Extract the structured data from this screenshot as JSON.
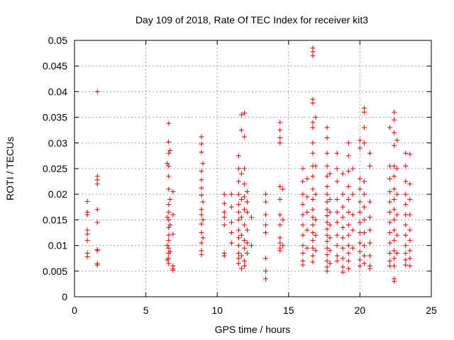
{
  "chart_data": {
    "type": "scatter",
    "title": "Day 109 of 2018, Rate Of TEC Index for receiver kit3",
    "xlabel": "GPS time / hours",
    "ylabel": "ROTI / TECUs",
    "xlim": [
      0,
      25
    ],
    "ylim": [
      0,
      0.05
    ],
    "xticks": [
      0,
      5,
      10,
      15,
      20,
      25
    ],
    "xtick_labels": [
      "0",
      "5",
      "10",
      "15",
      "20",
      "25"
    ],
    "yticks": [
      0,
      0.005,
      0.01,
      0.015,
      0.02,
      0.025,
      0.03,
      0.035,
      0.04,
      0.045,
      0.05
    ],
    "ytick_labels": [
      "0",
      "0.005",
      "0.01",
      "0.015",
      "0.02",
      "0.025",
      "0.03",
      "0.035",
      "0.04",
      "0.045",
      "0.05"
    ],
    "grid": true,
    "marker": "plus",
    "marker_color": "#e00000",
    "points": [
      [
        0.9,
        0.0186
      ],
      [
        0.9,
        0.0165
      ],
      [
        0.9,
        0.016
      ],
      [
        0.9,
        0.013
      ],
      [
        0.9,
        0.0122
      ],
      [
        0.9,
        0.011
      ],
      [
        0.9,
        0.0085
      ],
      [
        0.9,
        0.0078
      ],
      [
        1.6,
        0.04
      ],
      [
        1.6,
        0.0235
      ],
      [
        1.6,
        0.0228
      ],
      [
        1.6,
        0.022
      ],
      [
        1.6,
        0.017
      ],
      [
        1.6,
        0.0145
      ],
      [
        1.6,
        0.0092
      ],
      [
        1.6,
        0.009
      ],
      [
        1.6,
        0.0065
      ],
      [
        1.6,
        0.0062
      ],
      [
        6.6,
        0.0338
      ],
      [
        6.6,
        0.0302
      ],
      [
        6.6,
        0.028
      ],
      [
        6.6,
        0.0255
      ],
      [
        6.6,
        0.0235
      ],
      [
        6.6,
        0.021
      ],
      [
        6.6,
        0.018
      ],
      [
        6.6,
        0.0165
      ],
      [
        6.6,
        0.015
      ],
      [
        6.6,
        0.0135
      ],
      [
        6.6,
        0.012
      ],
      [
        6.6,
        0.011
      ],
      [
        6.6,
        0.0095
      ],
      [
        6.6,
        0.0085
      ],
      [
        6.6,
        0.0075
      ],
      [
        6.6,
        0.0065
      ],
      [
        6.5,
        0.026
      ],
      [
        6.5,
        0.0155
      ],
      [
        6.5,
        0.01
      ],
      [
        6.5,
        0.0072
      ],
      [
        6.7,
        0.0285
      ],
      [
        6.7,
        0.019
      ],
      [
        6.7,
        0.014
      ],
      [
        6.7,
        0.0088
      ],
      [
        6.9,
        0.0205
      ],
      [
        6.9,
        0.016
      ],
      [
        6.9,
        0.0122
      ],
      [
        6.9,
        0.006
      ],
      [
        6.9,
        0.0055
      ],
      [
        6.9,
        0.0052
      ],
      [
        8.9,
        0.0312
      ],
      [
        8.9,
        0.0298
      ],
      [
        8.9,
        0.0282
      ],
      [
        8.9,
        0.0245
      ],
      [
        8.9,
        0.0228
      ],
      [
        8.9,
        0.0212
      ],
      [
        8.9,
        0.0198
      ],
      [
        8.9,
        0.017
      ],
      [
        8.9,
        0.016
      ],
      [
        8.9,
        0.0142
      ],
      [
        8.9,
        0.0125
      ],
      [
        8.9,
        0.0105
      ],
      [
        8.9,
        0.009
      ],
      [
        8.9,
        0.0082
      ],
      [
        9.0,
        0.026
      ],
      [
        9.0,
        0.0185
      ],
      [
        9.0,
        0.015
      ],
      [
        9.0,
        0.0115
      ],
      [
        10.5,
        0.02
      ],
      [
        10.5,
        0.0182
      ],
      [
        10.5,
        0.0165
      ],
      [
        10.5,
        0.0155
      ],
      [
        10.5,
        0.014
      ],
      [
        10.5,
        0.0085
      ],
      [
        10.5,
        0.008
      ],
      [
        11.0,
        0.02
      ],
      [
        11.0,
        0.0175
      ],
      [
        11.0,
        0.0145
      ],
      [
        11.0,
        0.0125
      ],
      [
        11.0,
        0.0105
      ],
      [
        11.5,
        0.0275
      ],
      [
        11.5,
        0.025
      ],
      [
        11.5,
        0.0225
      ],
      [
        11.5,
        0.02
      ],
      [
        11.5,
        0.018
      ],
      [
        11.5,
        0.0165
      ],
      [
        11.5,
        0.015
      ],
      [
        11.5,
        0.013
      ],
      [
        11.5,
        0.0115
      ],
      [
        11.5,
        0.01
      ],
      [
        11.5,
        0.0085
      ],
      [
        11.5,
        0.0075
      ],
      [
        11.5,
        0.0065
      ],
      [
        11.7,
        0.0355
      ],
      [
        11.7,
        0.0325
      ],
      [
        11.7,
        0.024
      ],
      [
        11.7,
        0.019
      ],
      [
        11.7,
        0.0155
      ],
      [
        11.7,
        0.012
      ],
      [
        11.7,
        0.008
      ],
      [
        11.7,
        0.0055
      ],
      [
        11.9,
        0.0358
      ],
      [
        11.9,
        0.0312
      ],
      [
        11.9,
        0.025
      ],
      [
        11.9,
        0.022
      ],
      [
        11.9,
        0.0195
      ],
      [
        11.9,
        0.017
      ],
      [
        11.9,
        0.014
      ],
      [
        11.9,
        0.011
      ],
      [
        11.9,
        0.0095
      ],
      [
        11.9,
        0.007
      ],
      [
        11.9,
        0.006
      ],
      [
        12.1,
        0.0205
      ],
      [
        12.1,
        0.0185
      ],
      [
        12.1,
        0.0165
      ],
      [
        12.1,
        0.013
      ],
      [
        12.1,
        0.0105
      ],
      [
        12.1,
        0.0085
      ],
      [
        12.4,
        0.0155
      ],
      [
        12.4,
        0.01
      ],
      [
        13.4,
        0.02
      ],
      [
        13.4,
        0.0185
      ],
      [
        13.4,
        0.016
      ],
      [
        13.4,
        0.014
      ],
      [
        13.4,
        0.0125
      ],
      [
        13.4,
        0.0075
      ],
      [
        13.4,
        0.005
      ],
      [
        13.4,
        0.0035
      ],
      [
        14.4,
        0.034
      ],
      [
        14.4,
        0.0325
      ],
      [
        14.4,
        0.031
      ],
      [
        14.4,
        0.03
      ],
      [
        14.4,
        0.0215
      ],
      [
        14.4,
        0.019
      ],
      [
        14.4,
        0.016
      ],
      [
        14.4,
        0.014
      ],
      [
        14.4,
        0.0115
      ],
      [
        14.4,
        0.0105
      ],
      [
        14.4,
        0.0095
      ],
      [
        14.4,
        0.009
      ],
      [
        14.6,
        0.021
      ],
      [
        14.6,
        0.015
      ],
      [
        14.6,
        0.01
      ],
      [
        16.0,
        0.025
      ],
      [
        16.0,
        0.0225
      ],
      [
        16.0,
        0.02
      ],
      [
        16.0,
        0.018
      ],
      [
        16.0,
        0.016
      ],
      [
        16.0,
        0.014
      ],
      [
        16.0,
        0.012
      ],
      [
        16.0,
        0.01
      ],
      [
        16.0,
        0.0085
      ],
      [
        16.0,
        0.007
      ],
      [
        16.0,
        0.0062
      ],
      [
        16.3,
        0.023
      ],
      [
        16.3,
        0.0195
      ],
      [
        16.3,
        0.0165
      ],
      [
        16.3,
        0.013
      ],
      [
        16.3,
        0.0095
      ],
      [
        16.7,
        0.0485
      ],
      [
        16.7,
        0.0478
      ],
      [
        16.7,
        0.047
      ],
      [
        16.7,
        0.0385
      ],
      [
        16.7,
        0.0378
      ],
      [
        16.7,
        0.034
      ],
      [
        16.7,
        0.033
      ],
      [
        16.7,
        0.03
      ],
      [
        16.7,
        0.028
      ],
      [
        16.7,
        0.0255
      ],
      [
        16.7,
        0.0235
      ],
      [
        16.7,
        0.021
      ],
      [
        16.7,
        0.019
      ],
      [
        16.7,
        0.017
      ],
      [
        16.7,
        0.0155
      ],
      [
        16.7,
        0.014
      ],
      [
        16.7,
        0.0125
      ],
      [
        16.7,
        0.011
      ],
      [
        16.7,
        0.0095
      ],
      [
        16.7,
        0.008
      ],
      [
        16.7,
        0.0068
      ],
      [
        16.9,
        0.035
      ],
      [
        16.9,
        0.0255
      ],
      [
        16.9,
        0.02
      ],
      [
        16.9,
        0.015
      ],
      [
        16.9,
        0.012
      ],
      [
        16.9,
        0.009
      ],
      [
        17.7,
        0.033
      ],
      [
        17.7,
        0.031
      ],
      [
        17.7,
        0.028
      ],
      [
        17.7,
        0.0255
      ],
      [
        17.7,
        0.0235
      ],
      [
        17.7,
        0.0215
      ],
      [
        17.7,
        0.02
      ],
      [
        17.7,
        0.0185
      ],
      [
        17.7,
        0.017
      ],
      [
        17.7,
        0.0158
      ],
      [
        17.7,
        0.0145
      ],
      [
        17.7,
        0.0132
      ],
      [
        17.7,
        0.012
      ],
      [
        17.7,
        0.0108
      ],
      [
        17.7,
        0.0095
      ],
      [
        17.7,
        0.0082
      ],
      [
        17.7,
        0.007
      ],
      [
        17.7,
        0.0058
      ],
      [
        17.7,
        0.005
      ],
      [
        17.9,
        0.024
      ],
      [
        17.9,
        0.019
      ],
      [
        17.9,
        0.0165
      ],
      [
        17.9,
        0.014
      ],
      [
        17.9,
        0.0115
      ],
      [
        17.9,
        0.009
      ],
      [
        17.9,
        0.0065
      ],
      [
        18.4,
        0.028
      ],
      [
        18.4,
        0.025
      ],
      [
        18.4,
        0.0225
      ],
      [
        18.4,
        0.019
      ],
      [
        18.4,
        0.0165
      ],
      [
        18.4,
        0.0145
      ],
      [
        18.4,
        0.012
      ],
      [
        18.4,
        0.01
      ],
      [
        18.4,
        0.008
      ],
      [
        18.4,
        0.007
      ],
      [
        18.8,
        0.024
      ],
      [
        18.8,
        0.02
      ],
      [
        18.8,
        0.0175
      ],
      [
        18.8,
        0.0155
      ],
      [
        18.8,
        0.0135
      ],
      [
        18.8,
        0.0115
      ],
      [
        18.8,
        0.0095
      ],
      [
        18.8,
        0.0075
      ],
      [
        18.8,
        0.0058
      ],
      [
        18.8,
        0.0048
      ],
      [
        19.2,
        0.03
      ],
      [
        19.2,
        0.0275
      ],
      [
        19.2,
        0.0245
      ],
      [
        19.2,
        0.0215
      ],
      [
        19.2,
        0.019
      ],
      [
        19.2,
        0.0165
      ],
      [
        19.2,
        0.014
      ],
      [
        19.2,
        0.012
      ],
      [
        19.2,
        0.01
      ],
      [
        19.2,
        0.0085
      ],
      [
        19.2,
        0.007
      ],
      [
        19.2,
        0.0055
      ],
      [
        19.5,
        0.025
      ],
      [
        19.5,
        0.02
      ],
      [
        19.5,
        0.016
      ],
      [
        19.5,
        0.013
      ],
      [
        19.5,
        0.0095
      ],
      [
        20.0,
        0.0305
      ],
      [
        20.0,
        0.029
      ],
      [
        20.0,
        0.023
      ],
      [
        20.0,
        0.021
      ],
      [
        20.0,
        0.0185
      ],
      [
        20.0,
        0.0165
      ],
      [
        20.0,
        0.0145
      ],
      [
        20.0,
        0.0125
      ],
      [
        20.0,
        0.0105
      ],
      [
        20.0,
        0.0088
      ],
      [
        20.0,
        0.0072
      ],
      [
        20.0,
        0.006
      ],
      [
        20.3,
        0.0368
      ],
      [
        20.3,
        0.036
      ],
      [
        20.3,
        0.033
      ],
      [
        20.3,
        0.03
      ],
      [
        20.3,
        0.0225
      ],
      [
        20.3,
        0.02
      ],
      [
        20.3,
        0.0175
      ],
      [
        20.3,
        0.015
      ],
      [
        20.3,
        0.0125
      ],
      [
        20.3,
        0.01
      ],
      [
        20.3,
        0.008
      ],
      [
        20.3,
        0.0065
      ],
      [
        20.7,
        0.028
      ],
      [
        20.7,
        0.0255
      ],
      [
        20.7,
        0.0185
      ],
      [
        20.7,
        0.0155
      ],
      [
        20.7,
        0.013
      ],
      [
        20.7,
        0.0105
      ],
      [
        20.7,
        0.008
      ],
      [
        20.7,
        0.006
      ],
      [
        20.7,
        0.0055
      ],
      [
        22.1,
        0.033
      ],
      [
        22.1,
        0.0255
      ],
      [
        22.1,
        0.023
      ],
      [
        22.1,
        0.0205
      ],
      [
        22.1,
        0.0185
      ],
      [
        22.1,
        0.0165
      ],
      [
        22.1,
        0.0145
      ],
      [
        22.1,
        0.0125
      ],
      [
        22.1,
        0.0105
      ],
      [
        22.1,
        0.0085
      ],
      [
        22.1,
        0.007
      ],
      [
        22.1,
        0.006
      ],
      [
        22.4,
        0.036
      ],
      [
        22.4,
        0.0345
      ],
      [
        22.4,
        0.032
      ],
      [
        22.4,
        0.0295
      ],
      [
        22.4,
        0.0255
      ],
      [
        22.4,
        0.0235
      ],
      [
        22.4,
        0.021
      ],
      [
        22.4,
        0.019
      ],
      [
        22.4,
        0.017
      ],
      [
        22.4,
        0.015
      ],
      [
        22.4,
        0.013
      ],
      [
        22.4,
        0.011
      ],
      [
        22.4,
        0.009
      ],
      [
        22.4,
        0.0075
      ],
      [
        22.4,
        0.006
      ],
      [
        22.4,
        0.0035
      ],
      [
        22.4,
        0.003
      ],
      [
        22.6,
        0.0305
      ],
      [
        22.6,
        0.025
      ],
      [
        22.6,
        0.02
      ],
      [
        22.6,
        0.016
      ],
      [
        22.6,
        0.012
      ],
      [
        22.6,
        0.0085
      ],
      [
        23.2,
        0.028
      ],
      [
        23.2,
        0.0255
      ],
      [
        23.2,
        0.0225
      ],
      [
        23.2,
        0.02
      ],
      [
        23.2,
        0.018
      ],
      [
        23.2,
        0.016
      ],
      [
        23.2,
        0.014
      ],
      [
        23.2,
        0.012
      ],
      [
        23.2,
        0.01
      ],
      [
        23.2,
        0.0085
      ],
      [
        23.2,
        0.0072
      ],
      [
        23.2,
        0.0062
      ],
      [
        23.5,
        0.0278
      ],
      [
        23.5,
        0.022
      ],
      [
        23.5,
        0.019
      ],
      [
        23.5,
        0.016
      ],
      [
        23.5,
        0.013
      ],
      [
        23.5,
        0.011
      ],
      [
        23.5,
        0.009
      ],
      [
        23.5,
        0.0075
      ],
      [
        23.5,
        0.006
      ]
    ]
  }
}
